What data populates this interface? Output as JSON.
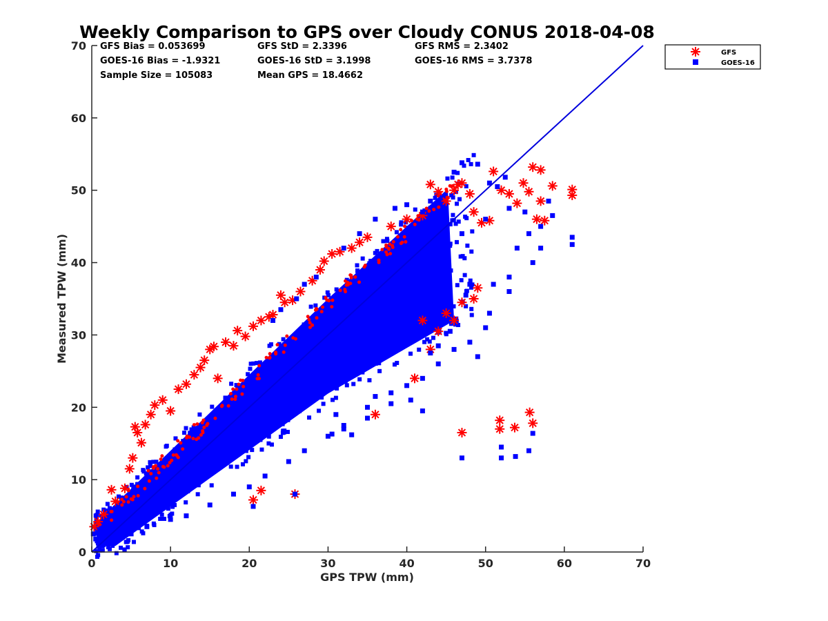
{
  "colors": {
    "gfs": "#ff0000",
    "goes": "#0000ff",
    "axis": "#262626",
    "oneToOne": "#0000dd"
  },
  "chart_data": {
    "type": "scatter",
    "title": "Weekly Comparison to GPS over Cloudy CONUS 2018-04-08",
    "xlabel": "GPS TPW (mm)",
    "ylabel": "Measured TPW (mm)",
    "xlim": [
      0,
      70
    ],
    "ylim": [
      0,
      70
    ],
    "xticks": [
      "0",
      "10",
      "20",
      "30",
      "40",
      "50",
      "60",
      "70"
    ],
    "yticks": [
      "0",
      "10",
      "20",
      "30",
      "40",
      "50",
      "60",
      "70"
    ],
    "grid": false,
    "legend_placement": "outside top-right",
    "reference_line": {
      "x": [
        0,
        70
      ],
      "y": [
        0,
        70
      ]
    },
    "stats": {
      "gfs_bias": "GFS Bias = 0.053699",
      "gfs_std": "GFS StD = 2.3396",
      "gfs_rms": "GFS RMS = 2.3402",
      "goes_bias": "GOES-16 Bias = -1.9321",
      "goes_std": "GOES-16 StD = 3.1998",
      "goes_rms": "GOES-16 RMS = 3.7378",
      "sample_size": "Sample Size = 105083",
      "mean_gps": "Mean GPS = 18.4662"
    },
    "series": [
      {
        "name": "GFS",
        "marker": "asterisk",
        "color": "#ff0000",
        "points": [
          [
            0.3,
            3.5
          ],
          [
            0.8,
            4.2
          ],
          [
            1.5,
            5.2
          ],
          [
            2.5,
            8.6
          ],
          [
            3,
            7
          ],
          [
            4.2,
            8.8
          ],
          [
            4.8,
            11.5
          ],
          [
            5.2,
            13
          ],
          [
            5.5,
            17.3
          ],
          [
            5.8,
            16.5
          ],
          [
            6.3,
            15.1
          ],
          [
            6.8,
            17.6
          ],
          [
            7.5,
            19
          ],
          [
            8,
            20.3
          ],
          [
            9,
            21
          ],
          [
            10,
            19.5
          ],
          [
            11,
            22.5
          ],
          [
            12,
            23.2
          ],
          [
            13,
            24.5
          ],
          [
            13.8,
            25.5
          ],
          [
            14.3,
            26.5
          ],
          [
            15,
            28
          ],
          [
            15.5,
            28.4
          ],
          [
            16,
            24
          ],
          [
            17,
            29
          ],
          [
            18,
            28.5
          ],
          [
            18.5,
            30.6
          ],
          [
            19.5,
            29.8
          ],
          [
            20.5,
            31.2
          ],
          [
            21.5,
            32
          ],
          [
            22.5,
            32.5
          ],
          [
            23,
            32.8
          ],
          [
            24,
            35.5
          ],
          [
            24.5,
            34.5
          ],
          [
            25.5,
            34.8
          ],
          [
            26.5,
            36
          ],
          [
            28,
            37.5
          ],
          [
            29,
            39
          ],
          [
            29.5,
            40.2
          ],
          [
            30.5,
            41.2
          ],
          [
            31.5,
            41.5
          ],
          [
            33,
            42
          ],
          [
            34,
            42.8
          ],
          [
            35,
            43.5
          ],
          [
            38,
            45
          ],
          [
            40,
            46
          ],
          [
            42,
            46.5
          ],
          [
            43,
            50.8
          ],
          [
            44,
            49.8
          ],
          [
            45,
            48.5
          ],
          [
            46,
            50
          ],
          [
            46.5,
            50.8
          ],
          [
            47,
            51
          ],
          [
            48,
            49.5
          ],
          [
            48.5,
            47
          ],
          [
            49.5,
            45.5
          ],
          [
            50.5,
            45.8
          ],
          [
            51,
            52.6
          ],
          [
            52,
            50
          ],
          [
            53,
            49.5
          ],
          [
            54,
            48.2
          ],
          [
            54.8,
            51
          ],
          [
            55.5,
            49.8
          ],
          [
            56,
            53.2
          ],
          [
            57,
            52.8
          ],
          [
            57,
            48.5
          ],
          [
            58.5,
            50.6
          ],
          [
            61,
            50.1
          ],
          [
            61,
            49.3
          ],
          [
            56.5,
            46
          ],
          [
            57.5,
            45.8
          ],
          [
            20.5,
            7.2
          ],
          [
            21.5,
            8.5
          ],
          [
            25.8,
            8
          ],
          [
            47,
            16.5
          ],
          [
            51.8,
            18.2
          ],
          [
            51.8,
            17
          ],
          [
            53.7,
            17.2
          ],
          [
            55.6,
            19.3
          ],
          [
            56,
            17.8
          ],
          [
            36,
            19
          ],
          [
            41,
            24
          ],
          [
            43,
            28
          ],
          [
            46,
            32
          ],
          [
            47,
            34.5
          ],
          [
            48.5,
            35
          ],
          [
            44,
            30.5
          ],
          [
            49,
            36.5
          ],
          [
            45,
            33
          ],
          [
            42,
            32
          ]
        ]
      },
      {
        "name": "GOES-16",
        "marker": "square",
        "color": "#0000ff",
        "points": [
          [
            0.2,
            2.5
          ],
          [
            0.5,
            1.8
          ],
          [
            1,
            3
          ],
          [
            1.2,
            1.5
          ],
          [
            2,
            2.5
          ],
          [
            3,
            2
          ],
          [
            5,
            2.5
          ],
          [
            7,
            3.5
          ],
          [
            10,
            4.5
          ],
          [
            12,
            5
          ],
          [
            15,
            6.5
          ],
          [
            18,
            8
          ],
          [
            20,
            9
          ],
          [
            22,
            10.5
          ],
          [
            25,
            12.5
          ],
          [
            27,
            14
          ],
          [
            30,
            16
          ],
          [
            32,
            17.5
          ],
          [
            33,
            16.2
          ],
          [
            35,
            20
          ],
          [
            38,
            22
          ],
          [
            40,
            23
          ],
          [
            42,
            24
          ],
          [
            44,
            26
          ],
          [
            46,
            28
          ],
          [
            48,
            29
          ],
          [
            49,
            27
          ],
          [
            50,
            31
          ],
          [
            50.5,
            33
          ],
          [
            51,
            37
          ],
          [
            53,
            36
          ],
          [
            53,
            38
          ],
          [
            56,
            40
          ],
          [
            57,
            42
          ],
          [
            58.5,
            46.5
          ],
          [
            61,
            43.5
          ],
          [
            61,
            42.5
          ],
          [
            58,
            48.5
          ],
          [
            55.5,
            44
          ],
          [
            54,
            42
          ],
          [
            49,
            53.6
          ],
          [
            47,
            53.8
          ],
          [
            46,
            52.5
          ],
          [
            50.5,
            51
          ],
          [
            51.5,
            50.5
          ],
          [
            52.5,
            51.8
          ],
          [
            38.5,
            47.5
          ],
          [
            40,
            48
          ],
          [
            42,
            47
          ],
          [
            43,
            48.5
          ],
          [
            41,
            43
          ],
          [
            44,
            44.5
          ],
          [
            47,
            44
          ],
          [
            50,
            46
          ],
          [
            53,
            47.5
          ],
          [
            55,
            47
          ],
          [
            57,
            45
          ],
          [
            36,
            46
          ],
          [
            34,
            44
          ],
          [
            32,
            42
          ],
          [
            47,
            13
          ],
          [
            52,
            14.5
          ],
          [
            52,
            13
          ],
          [
            53.8,
            13.2
          ],
          [
            55.5,
            14
          ],
          [
            56,
            16.4
          ],
          [
            25.8,
            8
          ],
          [
            20.5,
            6.3
          ],
          [
            42,
            19.5
          ],
          [
            40.5,
            21
          ],
          [
            38,
            20.5
          ],
          [
            36,
            21.5
          ],
          [
            30.5,
            16.3
          ],
          [
            32,
            17
          ],
          [
            24,
            33.5
          ],
          [
            23,
            32
          ],
          [
            26,
            35
          ],
          [
            27,
            37
          ],
          [
            28.5,
            38
          ],
          [
            45.5,
            30.5
          ],
          [
            44,
            28.5
          ],
          [
            43,
            27.5
          ],
          [
            47.5,
            35.5
          ],
          [
            48,
            37
          ],
          [
            35,
            18.5
          ],
          [
            31,
            19
          ]
        ]
      }
    ]
  }
}
